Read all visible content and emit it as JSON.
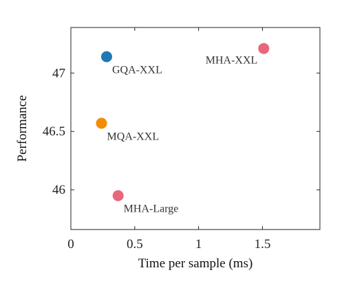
{
  "chart_data": {
    "type": "scatter",
    "title": "",
    "xlabel": "Time per sample (ms)",
    "ylabel": "Performance",
    "xlim": [
      0,
      1.95
    ],
    "ylim": [
      45.66,
      47.39
    ],
    "x_ticks": [
      0,
      0.5,
      1,
      1.5
    ],
    "x_tick_labels": [
      "0",
      "0.5",
      "1",
      "1.5"
    ],
    "y_ticks": [
      46,
      46.5,
      47
    ],
    "y_tick_labels": [
      "46",
      "46.5",
      "47"
    ],
    "grid": false,
    "legend": "none",
    "points": [
      {
        "label": "GQA-XXL",
        "x": 0.28,
        "y": 47.14,
        "color": "#1f77b4",
        "label_side": "below-right"
      },
      {
        "label": "MHA-XXL",
        "x": 1.51,
        "y": 47.21,
        "color": "#e8677a",
        "label_side": "below-left"
      },
      {
        "label": "MQA-XXL",
        "x": 0.24,
        "y": 46.57,
        "color": "#f28c00",
        "label_side": "below-right"
      },
      {
        "label": "MHA-Large",
        "x": 0.37,
        "y": 45.95,
        "color": "#e8677a",
        "label_side": "below-right"
      }
    ]
  }
}
